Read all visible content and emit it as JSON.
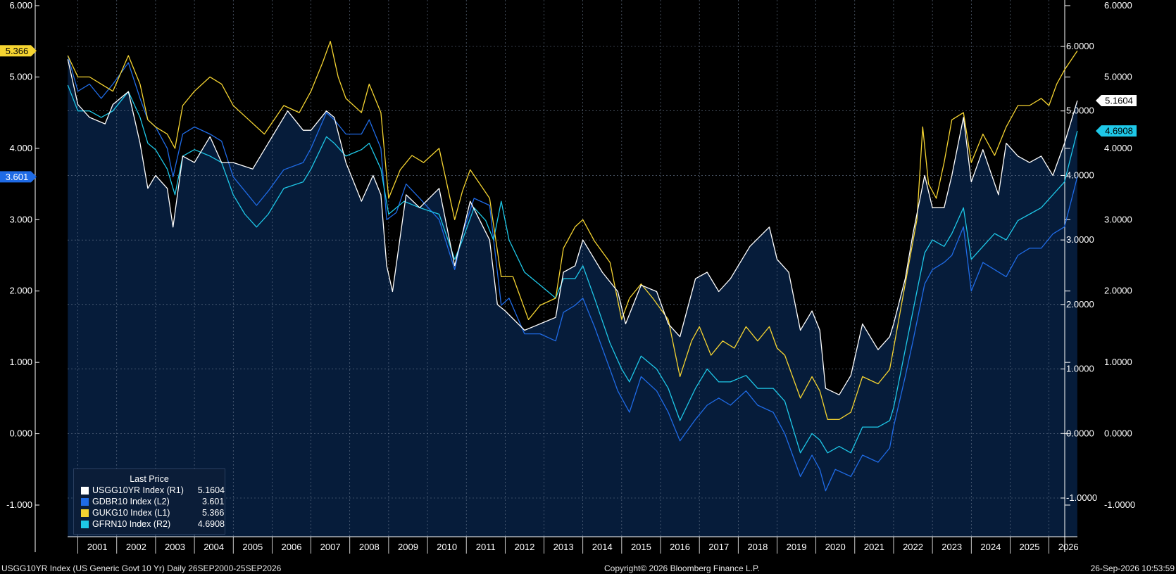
{
  "chart_data": {
    "type": "line",
    "ylim_left": [
      -1.5,
      6.1
    ],
    "ylim_right": [
      -1.5,
      7.0
    ],
    "y_ticks_left": [
      "6.000",
      "5.000",
      "4.000",
      "3.000",
      "2.000",
      "1.000",
      "0.000",
      "-1.000"
    ],
    "y_ticks_right": [
      "6.0000",
      "5.0000",
      "4.0000",
      "3.0000",
      "2.0000",
      "1.0000",
      "0.0000",
      "-1.0000"
    ],
    "x_ticks": [
      "2001",
      "2002",
      "2003",
      "2004",
      "2005",
      "2006",
      "2007",
      "2008",
      "2009",
      "2010",
      "2011",
      "2012",
      "2013",
      "2014",
      "2015",
      "2016",
      "2017",
      "2018",
      "2019",
      "2020",
      "2021",
      "2022",
      "2023",
      "2024",
      "2025",
      "2026"
    ],
    "x_range": [
      "2000-09-26",
      "2026-09-25"
    ],
    "grid": true,
    "background": "#061c3a",
    "legend": {
      "title": "Last Price",
      "position": "bottom-left",
      "entries": [
        {
          "name": "USGG10YR Index  (R1)",
          "value": "5.1604",
          "color": "#ffffff"
        },
        {
          "name": "GDBR10 Index  (L2)",
          "value": "3.601",
          "color": "#1f6be6"
        },
        {
          "name": "GUKG10 Index  (L1)",
          "value": "5.366",
          "color": "#f5d431"
        },
        {
          "name": "GFRN10 Index  (R2)",
          "value": "4.6908",
          "color": "#1ec8e8"
        }
      ]
    },
    "value_tags": {
      "left": [
        {
          "text": "5.366",
          "value": 5.366,
          "color": "#f5d431",
          "text_color": "#000000"
        },
        {
          "text": "3.601",
          "value": 3.601,
          "color": "#1f6be6",
          "text_color": "#ffffff"
        }
      ],
      "right": [
        {
          "text": "5.1604",
          "value": 5.1604,
          "color": "#ffffff",
          "text_color": "#000000"
        },
        {
          "text": "4.6908",
          "value": 4.6908,
          "color": "#1ec8e8",
          "text_color": "#000000"
        }
      ]
    },
    "series": [
      {
        "name": "USGG10YR Index",
        "axis": "right",
        "color": "#ffffff",
        "x": [
          2000.74,
          2001.0,
          2001.3,
          2001.7,
          2001.9,
          2002.3,
          2002.6,
          2002.8,
          2003.0,
          2003.3,
          2003.45,
          2003.7,
          2004.0,
          2004.4,
          2004.7,
          2005.0,
          2005.5,
          2005.9,
          2006.4,
          2006.8,
          2007.0,
          2007.4,
          2007.6,
          2007.9,
          2008.3,
          2008.6,
          2008.8,
          2008.95,
          2009.1,
          2009.45,
          2009.8,
          2010.3,
          2010.7,
          2010.9,
          2011.1,
          2011.6,
          2011.8,
          2012.0,
          2012.5,
          2012.9,
          2013.3,
          2013.5,
          2013.8,
          2014.0,
          2014.5,
          2014.9,
          2015.1,
          2015.5,
          2015.9,
          2016.2,
          2016.5,
          2016.9,
          2017.2,
          2017.5,
          2017.8,
          2018.3,
          2018.8,
          2019.0,
          2019.3,
          2019.6,
          2019.9,
          2020.1,
          2020.25,
          2020.6,
          2020.9,
          2021.2,
          2021.6,
          2021.9,
          2022.0,
          2022.3,
          2022.5,
          2022.8,
          2023.0,
          2023.3,
          2023.5,
          2023.8,
          2024.0,
          2024.3,
          2024.7,
          2024.9,
          2025.2,
          2025.5,
          2025.8,
          2026.1,
          2026.4,
          2026.73
        ],
        "y": [
          5.8,
          5.1,
          4.9,
          4.8,
          5.1,
          5.3,
          4.5,
          3.8,
          4.0,
          3.8,
          3.2,
          4.3,
          4.2,
          4.6,
          4.2,
          4.2,
          4.1,
          4.5,
          5.0,
          4.7,
          4.7,
          5.0,
          4.9,
          4.2,
          3.6,
          4.0,
          3.7,
          2.6,
          2.2,
          3.7,
          3.5,
          3.8,
          2.6,
          3.1,
          3.6,
          3.0,
          2.0,
          1.9,
          1.6,
          1.7,
          1.8,
          2.5,
          2.6,
          3.0,
          2.5,
          2.2,
          1.7,
          2.3,
          2.2,
          1.7,
          1.5,
          2.4,
          2.5,
          2.2,
          2.4,
          2.9,
          3.2,
          2.7,
          2.5,
          1.6,
          1.9,
          1.6,
          0.7,
          0.6,
          0.9,
          1.7,
          1.3,
          1.5,
          1.7,
          2.4,
          3.1,
          4.0,
          3.5,
          3.5,
          4.0,
          4.9,
          3.9,
          4.4,
          3.7,
          4.5,
          4.3,
          4.2,
          4.3,
          4.0,
          4.5,
          5.16
        ]
      },
      {
        "name": "GDBR10 Index",
        "axis": "left",
        "color": "#1f6be6",
        "x": [
          2000.74,
          2001.0,
          2001.3,
          2001.6,
          2001.9,
          2002.3,
          2002.6,
          2002.8,
          2003.0,
          2003.3,
          2003.45,
          2003.7,
          2004.0,
          2004.4,
          2004.7,
          2005.0,
          2005.3,
          2005.6,
          2005.9,
          2006.3,
          2006.8,
          2007.0,
          2007.4,
          2007.6,
          2007.9,
          2008.3,
          2008.5,
          2008.8,
          2008.95,
          2009.2,
          2009.45,
          2009.8,
          2010.3,
          2010.7,
          2010.9,
          2011.2,
          2011.6,
          2011.9,
          2012.1,
          2012.5,
          2012.9,
          2013.3,
          2013.5,
          2013.8,
          2014.0,
          2014.3,
          2014.7,
          2014.9,
          2015.2,
          2015.5,
          2015.9,
          2016.2,
          2016.5,
          2016.9,
          2017.2,
          2017.5,
          2017.8,
          2018.2,
          2018.5,
          2018.9,
          2019.2,
          2019.6,
          2019.9,
          2020.1,
          2020.25,
          2020.5,
          2020.9,
          2021.2,
          2021.6,
          2021.9,
          2022.0,
          2022.3,
          2022.5,
          2022.8,
          2023.0,
          2023.3,
          2023.5,
          2023.8,
          2024.0,
          2024.3,
          2024.6,
          2024.9,
          2025.2,
          2025.5,
          2025.8,
          2026.1,
          2026.4,
          2026.73
        ],
        "y": [
          5.3,
          4.8,
          4.9,
          4.7,
          4.9,
          5.2,
          4.7,
          4.4,
          4.3,
          4.0,
          3.6,
          4.2,
          4.3,
          4.2,
          4.1,
          3.6,
          3.4,
          3.2,
          3.4,
          3.7,
          3.8,
          4.0,
          4.5,
          4.4,
          4.2,
          4.2,
          4.4,
          4.0,
          3.0,
          3.1,
          3.5,
          3.3,
          3.0,
          2.3,
          2.8,
          3.3,
          3.2,
          1.8,
          1.9,
          1.4,
          1.4,
          1.3,
          1.7,
          1.8,
          1.9,
          1.5,
          0.9,
          0.6,
          0.3,
          0.8,
          0.6,
          0.3,
          -0.1,
          0.2,
          0.4,
          0.5,
          0.4,
          0.6,
          0.4,
          0.3,
          0.0,
          -0.6,
          -0.3,
          -0.5,
          -0.8,
          -0.5,
          -0.6,
          -0.3,
          -0.4,
          -0.2,
          0.1,
          0.8,
          1.3,
          2.1,
          2.3,
          2.4,
          2.5,
          2.9,
          2.0,
          2.4,
          2.3,
          2.2,
          2.5,
          2.6,
          2.6,
          2.8,
          2.9,
          3.601
        ]
      },
      {
        "name": "GUKG10 Index",
        "axis": "left",
        "color": "#f5d431",
        "x": [
          2000.74,
          2001.0,
          2001.3,
          2001.6,
          2001.9,
          2002.3,
          2002.6,
          2002.8,
          2003.0,
          2003.3,
          2003.5,
          2003.7,
          2004.0,
          2004.4,
          2004.7,
          2005.0,
          2005.4,
          2005.8,
          2006.3,
          2006.7,
          2007.0,
          2007.3,
          2007.5,
          2007.7,
          2007.9,
          2008.3,
          2008.5,
          2008.8,
          2009.0,
          2009.3,
          2009.6,
          2009.9,
          2010.3,
          2010.7,
          2010.9,
          2011.1,
          2011.6,
          2011.9,
          2012.2,
          2012.6,
          2012.9,
          2013.3,
          2013.5,
          2013.8,
          2014.0,
          2014.3,
          2014.7,
          2015.0,
          2015.2,
          2015.5,
          2015.8,
          2016.2,
          2016.5,
          2016.8,
          2017.0,
          2017.3,
          2017.6,
          2017.9,
          2018.2,
          2018.5,
          2018.8,
          2019.0,
          2019.2,
          2019.6,
          2019.9,
          2020.1,
          2020.3,
          2020.6,
          2020.9,
          2021.2,
          2021.6,
          2021.9,
          2022.0,
          2022.2,
          2022.4,
          2022.6,
          2022.75,
          2022.9,
          2023.1,
          2023.3,
          2023.5,
          2023.8,
          2024.0,
          2024.3,
          2024.6,
          2024.9,
          2025.2,
          2025.5,
          2025.8,
          2026.0,
          2026.2,
          2026.4,
          2026.73
        ],
        "y": [
          5.3,
          5.0,
          5.0,
          4.9,
          4.8,
          5.3,
          4.9,
          4.4,
          4.3,
          4.2,
          4.0,
          4.6,
          4.8,
          5.0,
          4.9,
          4.6,
          4.4,
          4.2,
          4.6,
          4.5,
          4.8,
          5.2,
          5.5,
          5.0,
          4.7,
          4.5,
          4.9,
          4.5,
          3.3,
          3.7,
          3.9,
          3.8,
          4.0,
          3.0,
          3.4,
          3.7,
          3.3,
          2.2,
          2.2,
          1.6,
          1.8,
          1.9,
          2.6,
          2.9,
          3.0,
          2.7,
          2.4,
          1.6,
          1.9,
          2.1,
          1.9,
          1.6,
          0.8,
          1.3,
          1.5,
          1.1,
          1.3,
          1.2,
          1.5,
          1.3,
          1.5,
          1.2,
          1.1,
          0.5,
          0.8,
          0.6,
          0.2,
          0.2,
          0.3,
          0.8,
          0.7,
          0.9,
          1.2,
          1.8,
          2.4,
          3.0,
          4.3,
          3.5,
          3.3,
          3.8,
          4.4,
          4.5,
          3.8,
          4.2,
          3.9,
          4.3,
          4.6,
          4.6,
          4.7,
          4.6,
          4.9,
          5.1,
          5.366
        ]
      },
      {
        "name": "GFRN10 Index",
        "axis": "right",
        "color": "#1ec8e8",
        "x": [
          2000.74,
          2001.0,
          2001.3,
          2001.6,
          2001.9,
          2002.3,
          2002.6,
          2002.8,
          2003.0,
          2003.3,
          2003.5,
          2003.7,
          2004.0,
          2004.4,
          2004.7,
          2005.0,
          2005.3,
          2005.6,
          2005.9,
          2006.3,
          2006.8,
          2007.0,
          2007.4,
          2007.6,
          2007.9,
          2008.3,
          2008.5,
          2008.8,
          2009.0,
          2009.4,
          2009.8,
          2010.3,
          2010.7,
          2010.9,
          2011.2,
          2011.5,
          2011.7,
          2011.9,
          2012.1,
          2012.5,
          2012.9,
          2013.3,
          2013.5,
          2013.8,
          2014.0,
          2014.3,
          2014.7,
          2015.0,
          2015.2,
          2015.5,
          2015.9,
          2016.2,
          2016.5,
          2016.9,
          2017.2,
          2017.5,
          2017.8,
          2018.2,
          2018.5,
          2018.9,
          2019.2,
          2019.6,
          2019.9,
          2020.1,
          2020.3,
          2020.6,
          2020.9,
          2021.2,
          2021.6,
          2021.9,
          2022.0,
          2022.3,
          2022.5,
          2022.8,
          2023.0,
          2023.3,
          2023.5,
          2023.8,
          2024.0,
          2024.3,
          2024.6,
          2024.9,
          2025.2,
          2025.5,
          2025.8,
          2026.1,
          2026.4,
          2026.73
        ],
        "y": [
          5.4,
          5.0,
          5.0,
          4.9,
          5.0,
          5.3,
          4.9,
          4.5,
          4.4,
          4.1,
          3.7,
          4.3,
          4.4,
          4.3,
          4.2,
          3.7,
          3.4,
          3.2,
          3.4,
          3.8,
          3.9,
          4.1,
          4.6,
          4.5,
          4.3,
          4.4,
          4.5,
          4.1,
          3.4,
          3.6,
          3.5,
          3.4,
          2.7,
          3.0,
          3.5,
          3.3,
          3.0,
          3.6,
          3.0,
          2.5,
          2.3,
          2.1,
          2.4,
          2.4,
          2.6,
          2.1,
          1.4,
          1.0,
          0.8,
          1.2,
          1.0,
          0.7,
          0.2,
          0.7,
          1.0,
          0.8,
          0.8,
          0.9,
          0.7,
          0.7,
          0.5,
          -0.3,
          0.0,
          -0.1,
          -0.3,
          -0.2,
          -0.3,
          0.1,
          0.1,
          0.2,
          0.4,
          1.3,
          1.9,
          2.8,
          3.0,
          2.9,
          3.1,
          3.5,
          2.7,
          2.9,
          3.1,
          3.0,
          3.3,
          3.4,
          3.5,
          3.7,
          3.9,
          4.69
        ]
      }
    ]
  },
  "footer": {
    "left": "USGG10YR Index (US Generic Govt 10 Yr) Daily 26SEP2000-25SEP2026",
    "center": "Copyright© 2026 Bloomberg Finance L.P.",
    "right": "26-Sep-2026 10:53:59"
  }
}
